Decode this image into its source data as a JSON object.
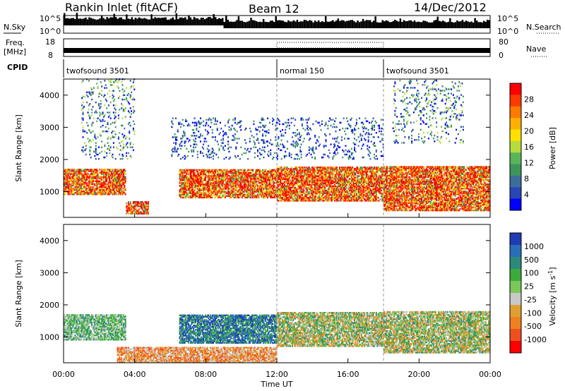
{
  "header": {
    "station": "Rankin Inlet (fitACF)",
    "beam": "Beam 12",
    "date": "14/Dec/2012"
  },
  "side_labels": {
    "nsky": "N.Sky",
    "nsearch": "N.Search",
    "freq": "Freq.",
    "freq_unit": "[MHz]",
    "nave": "Nave",
    "cpid": "CPID"
  },
  "cpid_segments": [
    {
      "label": "twofsound 3501",
      "start_hour": 0,
      "end_hour": 12
    },
    {
      "label": "normal 150",
      "start_hour": 12,
      "end_hour": 18
    },
    {
      "label": "twofsound 3501",
      "start_hour": 18,
      "end_hour": 24
    }
  ],
  "noise_axis": {
    "left_ticks": [
      "10^5",
      "10^0"
    ],
    "right_ticks": [
      "10^5",
      "10^0"
    ]
  },
  "freq_axis": {
    "left_ticks": [
      "18",
      "8"
    ],
    "right_ticks": [
      "80",
      "0"
    ]
  },
  "chart_data": [
    {
      "type": "heatmap",
      "name": "power",
      "xlabel": "",
      "ylabel": "Slant Range [km]",
      "xlim": [
        0,
        24
      ],
      "ylim": [
        200,
        4500
      ],
      "yticks": [
        1000,
        2000,
        3000,
        4000
      ],
      "colorbar": {
        "label": "Power [dB]",
        "tick_labels": [
          "28",
          "24",
          "20",
          "16",
          "12",
          "8",
          "4"
        ],
        "colors": [
          "#ff0000",
          "#ff3a00",
          "#ff7a00",
          "#ffb000",
          "#ffe000",
          "#b4dc3c",
          "#5ab45a",
          "#3c965a",
          "#3c6e9b",
          "#2846b4",
          "#0000ff"
        ]
      },
      "regions": [
        {
          "x": [
            0.0,
            3.5
          ],
          "y": [
            900,
            1700
          ],
          "level": "high"
        },
        {
          "x": [
            3.5,
            4.8
          ],
          "y": [
            300,
            700
          ],
          "level": "high"
        },
        {
          "x": [
            6.5,
            12.0
          ],
          "y": [
            800,
            1700
          ],
          "level": "high"
        },
        {
          "x": [
            12.0,
            18.0
          ],
          "y": [
            700,
            1800
          ],
          "level": "high"
        },
        {
          "x": [
            18.0,
            24.0
          ],
          "y": [
            400,
            1800
          ],
          "level": "high"
        },
        {
          "x": [
            1.0,
            4.0
          ],
          "y": [
            2000,
            4500
          ],
          "level": "mid"
        },
        {
          "x": [
            6.0,
            18.0
          ],
          "y": [
            2000,
            3300
          ],
          "level": "low"
        },
        {
          "x": [
            18.5,
            22.5
          ],
          "y": [
            2500,
            4500
          ],
          "level": "mid"
        }
      ]
    },
    {
      "type": "heatmap",
      "name": "velocity",
      "xlabel": "Time UT",
      "ylabel": "Slant Range [km]",
      "xlim": [
        0,
        24
      ],
      "ylim": [
        200,
        4500
      ],
      "yticks": [
        1000,
        2000,
        3000,
        4000
      ],
      "xtick_labels": [
        "00:00",
        "04:00",
        "08:00",
        "12:00",
        "16:00",
        "20:00",
        "00:00"
      ],
      "xticks": [
        0,
        4,
        8,
        12,
        16,
        20,
        24
      ],
      "colorbar": {
        "label": "Velocity [m s-1]",
        "tick_labels": [
          "1000",
          "500",
          "100",
          "25",
          "-25",
          "-100",
          "-500",
          "-1000"
        ],
        "colors": [
          "#1e3cb4",
          "#2a6eb8",
          "#2d8a7a",
          "#3caa3c",
          "#7bc85a",
          "#c8c8c8",
          "#e0a030",
          "#ef8020",
          "#f05020",
          "#ff0000"
        ]
      },
      "regions": [
        {
          "x": [
            0.0,
            3.5
          ],
          "y": [
            900,
            1700
          ],
          "level": "positive"
        },
        {
          "x": [
            6.5,
            12.0
          ],
          "y": [
            800,
            1700
          ],
          "level": "strong-positive"
        },
        {
          "x": [
            12.0,
            18.0
          ],
          "y": [
            700,
            1800
          ],
          "level": "mixed"
        },
        {
          "x": [
            18.0,
            24.0
          ],
          "y": [
            500,
            1800
          ],
          "level": "mixed"
        },
        {
          "x": [
            3.0,
            12.0
          ],
          "y": [
            200,
            700
          ],
          "level": "negative"
        }
      ]
    }
  ]
}
